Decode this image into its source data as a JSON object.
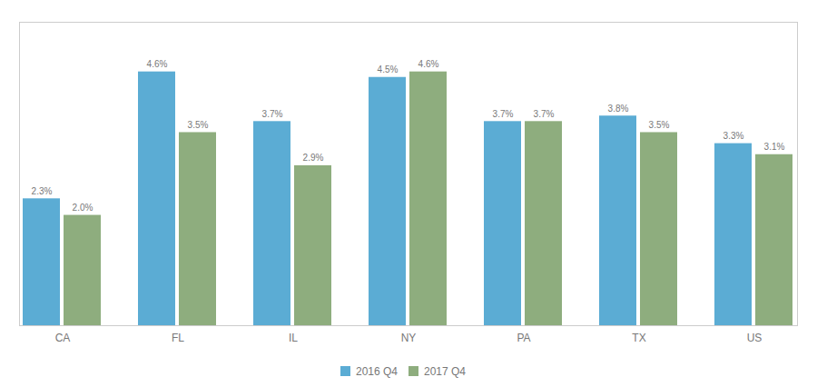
{
  "chart_data": {
    "type": "bar",
    "categories": [
      "CA",
      "FL",
      "IL",
      "NY",
      "PA",
      "TX",
      "US"
    ],
    "series": [
      {
        "name": "2016 Q4",
        "color": "#5BACD4",
        "values": [
          2.3,
          4.6,
          3.7,
          4.5,
          3.7,
          3.8,
          3.3
        ],
        "value_labels": [
          "2.3%",
          "4.6%",
          "3.7%",
          "4.5%",
          "3.7%",
          "3.8%",
          "3.3%"
        ]
      },
      {
        "name": "2017 Q4",
        "color": "#8EAD7E",
        "values": [
          2.0,
          3.5,
          2.9,
          4.6,
          3.7,
          3.5,
          3.1
        ],
        "value_labels": [
          "2.0%",
          "3.5%",
          "2.9%",
          "4.6%",
          "3.7%",
          "3.5%",
          "3.1%"
        ]
      }
    ],
    "ylim": [
      0,
      5.5
    ],
    "data_labels": true,
    "tick_labels": "x",
    "grid": false,
    "legend": "bottom"
  }
}
